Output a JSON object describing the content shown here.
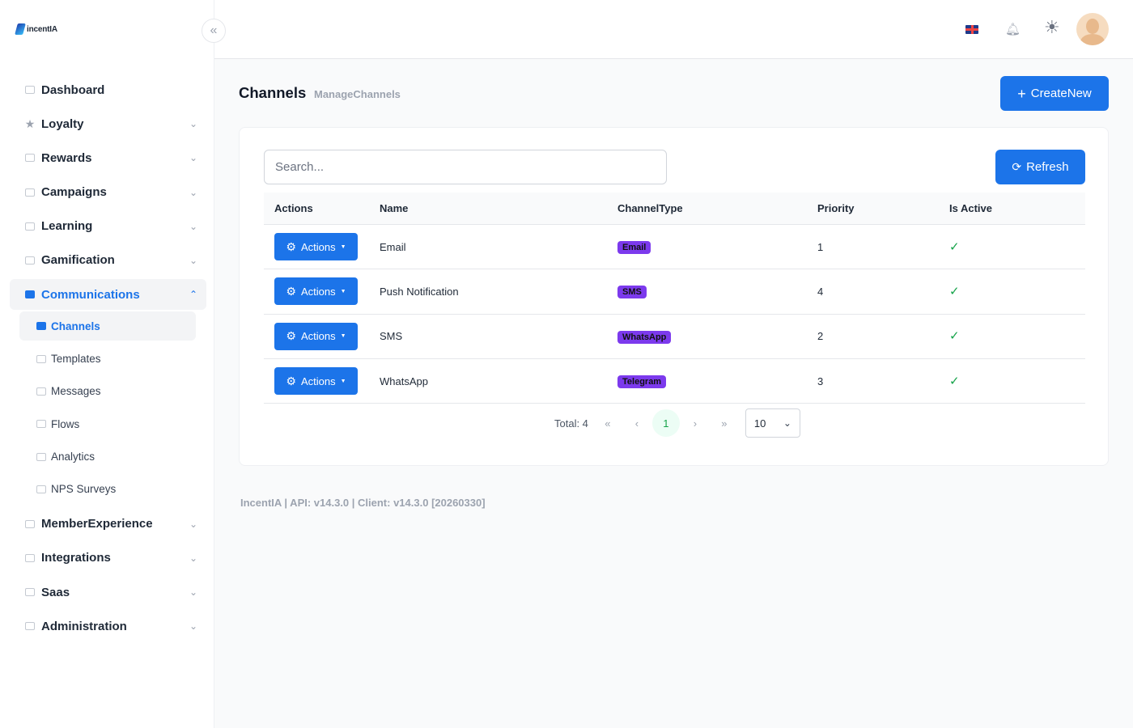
{
  "app": {
    "logo_text": "incentIA"
  },
  "sidebar": {
    "items": [
      {
        "label": "Dashboard",
        "icon": "chart-icon"
      },
      {
        "label": "Loyalty",
        "icon": "star-icon"
      },
      {
        "label": "Rewards",
        "icon": "gift-icon"
      },
      {
        "label": "Campaigns",
        "icon": "calendar-icon"
      },
      {
        "label": "Learning",
        "icon": "book-icon"
      },
      {
        "label": "Gamification",
        "icon": "trophy-icon"
      },
      {
        "label": "Communications",
        "icon": "chat-icon"
      },
      {
        "label": "MemberExperience",
        "icon": "inbox-icon"
      },
      {
        "label": "Integrations",
        "icon": "plug-icon"
      },
      {
        "label": "Saas",
        "icon": "building-icon"
      },
      {
        "label": "Administration",
        "icon": "settings-icon"
      }
    ],
    "sub_items": [
      {
        "label": "Channels",
        "icon": "chat-icon"
      },
      {
        "label": "Templates",
        "icon": "mail-icon"
      },
      {
        "label": "Messages",
        "icon": "send-icon"
      },
      {
        "label": "Flows",
        "icon": "flow-icon"
      },
      {
        "label": "Analytics",
        "icon": "chart-icon"
      },
      {
        "label": "NPS Surveys",
        "icon": "bar-chart-icon"
      }
    ]
  },
  "header": {
    "language": "en-GB",
    "theme": "light"
  },
  "page": {
    "title": "Channels",
    "subtitle": "ManageChannels",
    "create_label": "CreateNew"
  },
  "search": {
    "placeholder": "Search..."
  },
  "refresh_label": "Refresh",
  "table": {
    "headers": [
      "Actions",
      "Name",
      "ChannelType",
      "Priority",
      "Is Active"
    ],
    "action_label": "Actions",
    "rows": [
      {
        "name": "Email",
        "type": "Email",
        "priority": "1",
        "active": "✓"
      },
      {
        "name": "Push Notification",
        "type": "SMS",
        "priority": "4",
        "active": "✓"
      },
      {
        "name": "SMS",
        "type": "WhatsApp",
        "priority": "2",
        "active": "✓"
      },
      {
        "name": "WhatsApp",
        "type": "Telegram",
        "priority": "3",
        "active": "✓"
      }
    ]
  },
  "pagination": {
    "total": "Total: 4",
    "current_page": "1",
    "page_size": "10",
    "first": "«",
    "prev": "‹",
    "next": "›",
    "last": "»"
  },
  "footer": {
    "text": "IncentIA | API: v14.3.0 | Client: v14.3.0 [20260330]"
  },
  "colors": {
    "primary": "#1c74e9",
    "badge": "#7c3aed",
    "success": "#16a34a"
  }
}
